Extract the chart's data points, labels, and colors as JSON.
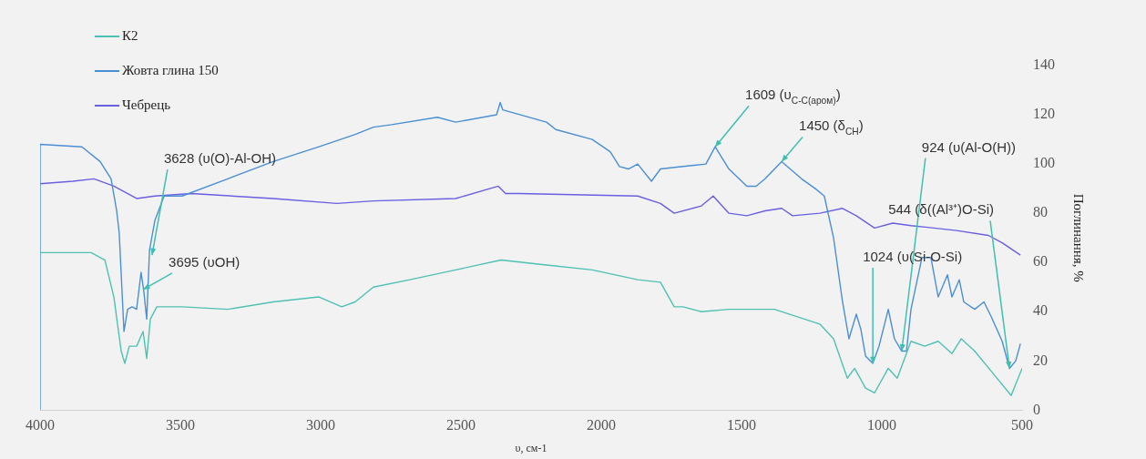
{
  "chart_data": {
    "type": "line",
    "xlabel": "υ, см-1",
    "ylabel": "Поглинання, %",
    "xlim": [
      4000,
      500
    ],
    "xticks": [
      4000,
      3500,
      3000,
      2500,
      2000,
      1500,
      1000,
      500
    ],
    "ylim": [
      0,
      140
    ],
    "yticks": [
      0,
      20,
      40,
      60,
      80,
      100,
      120,
      140
    ],
    "grid": false,
    "legend": "top left",
    "marker": "none",
    "series": [
      {
        "name": "К2",
        "color": "#4fc1b3",
        "x": [
          4000,
          3818,
          3769,
          3737,
          3711,
          3698,
          3682,
          3656,
          3633,
          3620,
          3607,
          3584,
          3494,
          3331,
          3169,
          3006,
          2925,
          2877,
          2812,
          2682,
          2519,
          2357,
          2195,
          2032,
          1870,
          1789,
          1740,
          1708,
          1643,
          1545,
          1383,
          1221,
          1172,
          1123,
          1097,
          1058,
          1026,
          977,
          945,
          896,
          847,
          799,
          750,
          717,
          669,
          604,
          539,
          500
        ],
        "values": [
          64,
          64,
          61,
          46,
          24,
          19,
          26,
          26,
          32,
          21,
          37,
          42,
          42,
          41,
          44,
          46,
          42,
          44,
          50,
          53,
          57,
          61,
          59,
          57,
          53,
          52,
          42,
          42,
          40,
          41,
          41,
          35,
          29,
          13,
          17,
          9,
          7,
          17,
          13,
          28,
          26,
          28,
          23,
          29,
          24,
          15,
          6,
          17
        ]
      },
      {
        "name": "Жовта глина 150",
        "color": "#4a8fd4",
        "x": [
          4000,
          4000,
          3851,
          3786,
          3747,
          3727,
          3718,
          3701,
          3688,
          3672,
          3656,
          3640,
          3630,
          3620,
          3610,
          3591,
          3558,
          3494,
          3331,
          3169,
          3006,
          2877,
          2812,
          2747,
          2584,
          2519,
          2373,
          2360,
          2351,
          2195,
          2162,
          2032,
          1968,
          1935,
          1903,
          1870,
          1821,
          1789,
          1708,
          1627,
          1594,
          1545,
          1481,
          1448,
          1416,
          1357,
          1286,
          1237,
          1205,
          1172,
          1140,
          1117,
          1091,
          1075,
          1058,
          1032,
          1010,
          977,
          955,
          929,
          912,
          896,
          857,
          825,
          799,
          766,
          750,
          724,
          708,
          669,
          636,
          610,
          571,
          545,
          523,
          506
        ],
        "values": [
          0,
          108,
          107,
          101,
          94,
          81,
          72,
          32,
          41,
          42,
          41,
          56,
          48,
          37,
          65,
          77,
          87,
          87,
          94,
          101,
          107,
          112,
          115,
          116,
          119,
          117,
          120,
          125,
          122,
          117,
          114,
          110,
          105,
          99,
          98,
          100,
          93,
          98,
          99,
          100,
          107,
          98,
          91,
          91,
          94,
          101,
          94,
          90,
          87,
          70,
          44,
          29,
          39,
          33,
          22,
          19,
          26,
          41,
          29,
          24,
          24,
          41,
          62,
          62,
          46,
          55,
          46,
          53,
          44,
          41,
          44,
          38,
          28,
          17,
          20,
          27
        ]
      },
      {
        "name": "Чебрець",
        "color": "#6a5fe0",
        "x": [
          4000,
          3883,
          3808,
          3737,
          3656,
          3591,
          3461,
          3169,
          2942,
          2812,
          2519,
          2367,
          2341,
          2292,
          1870,
          1789,
          1740,
          1643,
          1601,
          1545,
          1481,
          1416,
          1357,
          1318,
          1221,
          1140,
          1091,
          1026,
          961,
          896,
          734,
          620,
          571,
          506
        ],
        "values": [
          92,
          93,
          94,
          91,
          86,
          87,
          88,
          86,
          84,
          85,
          86,
          91,
          88,
          88,
          87,
          84,
          80,
          83,
          87,
          80,
          79,
          81,
          82,
          79,
          80,
          82,
          79,
          74,
          76,
          75,
          73,
          71,
          68,
          63
        ]
      }
    ],
    "annotations": [
      {
        "text": "3628 (υ(O)-Al-OH)",
        "x": 3601,
        "y": 63
      },
      {
        "text": "3695 (υOH)",
        "x": 3633,
        "y": 49
      },
      {
        "text": "1609 (υ$_{C-C(аром)}$)",
        "x": 1594,
        "y": 107
      },
      {
        "text": "1450 (δ$_{CH}$)",
        "x": 1357,
        "y": 101
      },
      {
        "text": "924 (υ(Al-O(H))",
        "x": 929,
        "y": 24
      },
      {
        "text": "1024 (υ(Si-O-Si)",
        "x": 1032,
        "y": 19
      },
      {
        "text": "544 (δ((Al³⁺)O-Si)",
        "x": 545,
        "y": 17
      }
    ]
  }
}
